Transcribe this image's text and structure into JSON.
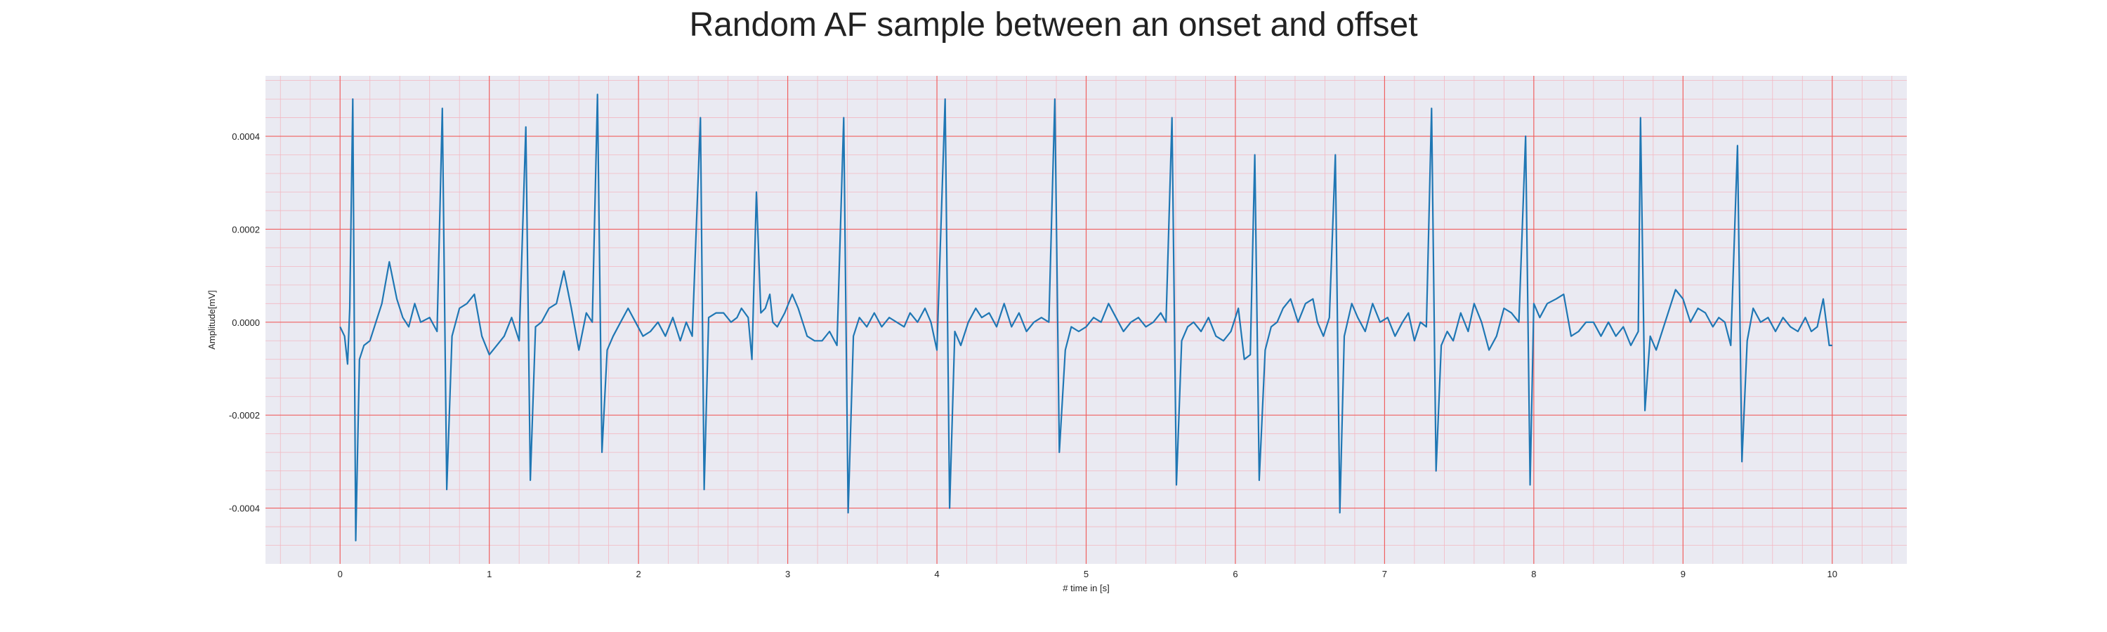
{
  "chart_data": {
    "type": "line",
    "title": "Random AF sample between an onset and offset",
    "xlabel": "# time in [s]",
    "ylabel": "Amplitude[mV]",
    "xlim": [
      -0.5,
      10.5
    ],
    "ylim": [
      -0.00052,
      0.00053
    ],
    "x_ticks": [
      0,
      1,
      2,
      3,
      4,
      5,
      6,
      7,
      8,
      9,
      10
    ],
    "x_tick_labels": [
      "0",
      "1",
      "2",
      "3",
      "4",
      "5",
      "6",
      "7",
      "8",
      "9",
      "10"
    ],
    "y_ticks": [
      -0.0004,
      -0.0002,
      0.0,
      0.0002,
      0.0004
    ],
    "y_tick_labels": [
      "-0.0004",
      "-0.0002",
      "0.0000",
      "0.0002",
      "0.0004"
    ],
    "grid": "major and minor",
    "colors": {
      "line": "#1f77b4",
      "plot_background": "#eaeaf2",
      "major_grid": "#f06060",
      "minor_grid": "#f3b8c2"
    },
    "series": [
      {
        "values_t_mV": [
          [
            0.0,
            -1e-05
          ],
          [
            0.03,
            -3e-05
          ],
          [
            0.05,
            -9e-05
          ],
          [
            0.065,
            3e-05
          ],
          [
            0.085,
            0.00048
          ],
          [
            0.105,
            -0.00047
          ],
          [
            0.13,
            -8e-05
          ],
          [
            0.16,
            -5e-05
          ],
          [
            0.2,
            -4e-05
          ],
          [
            0.24,
            0.0
          ],
          [
            0.28,
            4e-05
          ],
          [
            0.33,
            0.00013
          ],
          [
            0.38,
            5e-05
          ],
          [
            0.42,
            1e-05
          ],
          [
            0.46,
            -1e-05
          ],
          [
            0.5,
            4e-05
          ],
          [
            0.54,
            0.0
          ],
          [
            0.6,
            1e-05
          ],
          [
            0.65,
            -2e-05
          ],
          [
            0.685,
            0.00046
          ],
          [
            0.715,
            -0.00036
          ],
          [
            0.75,
            -3e-05
          ],
          [
            0.8,
            3e-05
          ],
          [
            0.85,
            4e-05
          ],
          [
            0.9,
            6e-05
          ],
          [
            0.95,
            -3e-05
          ],
          [
            1.0,
            -7e-05
          ],
          [
            1.05,
            -5e-05
          ],
          [
            1.1,
            -3e-05
          ],
          [
            1.15,
            1e-05
          ],
          [
            1.2,
            -4e-05
          ],
          [
            1.245,
            0.00042
          ],
          [
            1.275,
            -0.00034
          ],
          [
            1.31,
            -1e-05
          ],
          [
            1.35,
            0.0
          ],
          [
            1.4,
            3e-05
          ],
          [
            1.45,
            4e-05
          ],
          [
            1.5,
            0.00011
          ],
          [
            1.55,
            3e-05
          ],
          [
            1.6,
            -6e-05
          ],
          [
            1.65,
            2e-05
          ],
          [
            1.69,
            0.0
          ],
          [
            1.725,
            0.00049
          ],
          [
            1.755,
            -0.00028
          ],
          [
            1.79,
            -6e-05
          ],
          [
            1.83,
            -3e-05
          ],
          [
            1.88,
            0.0
          ],
          [
            1.93,
            3e-05
          ],
          [
            1.98,
            0.0
          ],
          [
            2.03,
            -3e-05
          ],
          [
            2.08,
            -2e-05
          ],
          [
            2.13,
            0.0
          ],
          [
            2.18,
            -3e-05
          ],
          [
            2.23,
            1e-05
          ],
          [
            2.28,
            -4e-05
          ],
          [
            2.32,
            0.0
          ],
          [
            2.36,
            -3e-05
          ],
          [
            2.415,
            0.00044
          ],
          [
            2.44,
            -0.00036
          ],
          [
            2.47,
            1e-05
          ],
          [
            2.52,
            2e-05
          ],
          [
            2.57,
            2e-05
          ],
          [
            2.62,
            0.0
          ],
          [
            2.66,
            1e-05
          ],
          [
            2.69,
            3e-05
          ],
          [
            2.735,
            1e-05
          ],
          [
            2.76,
            -8e-05
          ],
          [
            2.79,
            0.00028
          ],
          [
            2.82,
            2e-05
          ],
          [
            2.85,
            3e-05
          ],
          [
            2.88,
            6e-05
          ],
          [
            2.9,
            0.0
          ],
          [
            2.93,
            -1e-05
          ],
          [
            2.98,
            2e-05
          ],
          [
            3.03,
            6e-05
          ],
          [
            3.07,
            3e-05
          ],
          [
            3.13,
            -3e-05
          ],
          [
            3.18,
            -4e-05
          ],
          [
            3.23,
            -4e-05
          ],
          [
            3.28,
            -2e-05
          ],
          [
            3.33,
            -5e-05
          ],
          [
            3.375,
            0.00044
          ],
          [
            3.405,
            -0.00041
          ],
          [
            3.44,
            -3e-05
          ],
          [
            3.48,
            1e-05
          ],
          [
            3.53,
            -1e-05
          ],
          [
            3.58,
            2e-05
          ],
          [
            3.63,
            -1e-05
          ],
          [
            3.68,
            1e-05
          ],
          [
            3.73,
            0.0
          ],
          [
            3.78,
            -1e-05
          ],
          [
            3.82,
            2e-05
          ],
          [
            3.87,
            0.0
          ],
          [
            3.92,
            3e-05
          ],
          [
            3.96,
            0.0
          ],
          [
            4.0,
            -6e-05
          ],
          [
            4.055,
            0.00048
          ],
          [
            4.085,
            -0.0004
          ],
          [
            4.12,
            -2e-05
          ],
          [
            4.16,
            -5e-05
          ],
          [
            4.21,
            0.0
          ],
          [
            4.26,
            3e-05
          ],
          [
            4.3,
            1e-05
          ],
          [
            4.35,
            2e-05
          ],
          [
            4.4,
            -1e-05
          ],
          [
            4.45,
            4e-05
          ],
          [
            4.5,
            -1e-05
          ],
          [
            4.55,
            2e-05
          ],
          [
            4.6,
            -2e-05
          ],
          [
            4.65,
            0.0
          ],
          [
            4.7,
            1e-05
          ],
          [
            4.75,
            0.0
          ],
          [
            4.79,
            0.00048
          ],
          [
            4.82,
            -0.00028
          ],
          [
            4.86,
            -6e-05
          ],
          [
            4.9,
            -1e-05
          ],
          [
            4.95,
            -2e-05
          ],
          [
            5.0,
            -1e-05
          ],
          [
            5.05,
            1e-05
          ],
          [
            5.1,
            0.0
          ],
          [
            5.15,
            4e-05
          ],
          [
            5.2,
            1e-05
          ],
          [
            5.25,
            -2e-05
          ],
          [
            5.3,
            0.0
          ],
          [
            5.35,
            1e-05
          ],
          [
            5.4,
            -1e-05
          ],
          [
            5.45,
            0.0
          ],
          [
            5.5,
            2e-05
          ],
          [
            5.535,
            0.0
          ],
          [
            5.575,
            0.00044
          ],
          [
            5.605,
            -0.00035
          ],
          [
            5.64,
            -4e-05
          ],
          [
            5.68,
            -1e-05
          ],
          [
            5.72,
            0.0
          ],
          [
            5.77,
            -2e-05
          ],
          [
            5.82,
            1e-05
          ],
          [
            5.87,
            -3e-05
          ],
          [
            5.92,
            -4e-05
          ],
          [
            5.97,
            -2e-05
          ],
          [
            6.02,
            3e-05
          ],
          [
            6.06,
            -8e-05
          ],
          [
            6.1,
            -7e-05
          ],
          [
            6.13,
            0.00036
          ],
          [
            6.16,
            -0.00034
          ],
          [
            6.2,
            -6e-05
          ],
          [
            6.24,
            -1e-05
          ],
          [
            6.28,
            0.0
          ],
          [
            6.32,
            3e-05
          ],
          [
            6.37,
            5e-05
          ],
          [
            6.42,
            0.0
          ],
          [
            6.47,
            4e-05
          ],
          [
            6.52,
            5e-05
          ],
          [
            6.55,
            0.0
          ],
          [
            6.59,
            -3e-05
          ],
          [
            6.63,
            1e-05
          ],
          [
            6.67,
            0.00036
          ],
          [
            6.7,
            -0.00041
          ],
          [
            6.73,
            -3e-05
          ],
          [
            6.78,
            4e-05
          ],
          [
            6.82,
            1e-05
          ],
          [
            6.87,
            -2e-05
          ],
          [
            6.92,
            4e-05
          ],
          [
            6.97,
            0.0
          ],
          [
            7.02,
            1e-05
          ],
          [
            7.07,
            -3e-05
          ],
          [
            7.12,
            0.0
          ],
          [
            7.16,
            2e-05
          ],
          [
            7.2,
            -4e-05
          ],
          [
            7.24,
            0.0
          ],
          [
            7.28,
            -1e-05
          ],
          [
            7.315,
            0.00046
          ],
          [
            7.345,
            -0.00032
          ],
          [
            7.38,
            -5e-05
          ],
          [
            7.42,
            -2e-05
          ],
          [
            7.46,
            -4e-05
          ],
          [
            7.51,
            2e-05
          ],
          [
            7.56,
            -2e-05
          ],
          [
            7.6,
            4e-05
          ],
          [
            7.65,
            0.0
          ],
          [
            7.7,
            -6e-05
          ],
          [
            7.75,
            -3e-05
          ],
          [
            7.8,
            3e-05
          ],
          [
            7.85,
            2e-05
          ],
          [
            7.9,
            0.0
          ],
          [
            7.945,
            0.0004
          ],
          [
            7.975,
            -0.00035
          ],
          [
            8.0,
            4e-05
          ],
          [
            8.04,
            1e-05
          ],
          [
            8.09,
            4e-05
          ],
          [
            8.15,
            5e-05
          ],
          [
            8.2,
            6e-05
          ],
          [
            8.25,
            -3e-05
          ],
          [
            8.3,
            -2e-05
          ],
          [
            8.35,
            0.0
          ],
          [
            8.4,
            0.0
          ],
          [
            8.45,
            -3e-05
          ],
          [
            8.5,
            0.0
          ],
          [
            8.55,
            -3e-05
          ],
          [
            8.6,
            -1e-05
          ],
          [
            8.65,
            -5e-05
          ],
          [
            8.7,
            -2e-05
          ],
          [
            8.715,
            0.00044
          ],
          [
            8.745,
            -0.00019
          ],
          [
            8.78,
            -3e-05
          ],
          [
            8.82,
            -6e-05
          ],
          [
            8.86,
            -2e-05
          ],
          [
            8.9,
            2e-05
          ],
          [
            8.95,
            7e-05
          ],
          [
            9.0,
            5e-05
          ],
          [
            9.05,
            0.0
          ],
          [
            9.1,
            3e-05
          ],
          [
            9.15,
            2e-05
          ],
          [
            9.2,
            -1e-05
          ],
          [
            9.24,
            1e-05
          ],
          [
            9.28,
            0.0
          ],
          [
            9.32,
            -5e-05
          ],
          [
            9.365,
            0.00038
          ],
          [
            9.395,
            -0.0003
          ],
          [
            9.43,
            -4e-05
          ],
          [
            9.47,
            3e-05
          ],
          [
            9.52,
            0.0
          ],
          [
            9.57,
            1e-05
          ],
          [
            9.62,
            -2e-05
          ],
          [
            9.67,
            1e-05
          ],
          [
            9.72,
            -1e-05
          ],
          [
            9.77,
            -2e-05
          ],
          [
            9.82,
            1e-05
          ],
          [
            9.86,
            -2e-05
          ],
          [
            9.9,
            -1e-05
          ],
          [
            9.94,
            5e-05
          ],
          [
            9.98,
            -5e-05
          ],
          [
            10.0,
            -5e-05
          ]
        ]
      }
    ]
  }
}
